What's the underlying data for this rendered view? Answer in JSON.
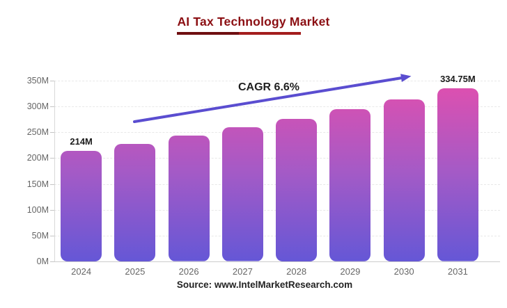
{
  "title": {
    "text": "AI Tax Technology Market",
    "color": "#8B0E12",
    "underline_colors": [
      "#6E0E10",
      "#A31D1D"
    ]
  },
  "annotation": {
    "text": "CAGR 6.6%",
    "arrow_color": "#5A4DD0"
  },
  "source": "Source: www.IntelMarketResearch.com",
  "chart_data": {
    "type": "bar",
    "categories": [
      "2024",
      "2025",
      "2026",
      "2027",
      "2028",
      "2029",
      "2030",
      "2031"
    ],
    "values": [
      214,
      228.1,
      243.2,
      259.2,
      276.3,
      294.6,
      314.0,
      334.75
    ],
    "data_labels": [
      "214M",
      "",
      "",
      "",
      "",
      "",
      "",
      "334.75M"
    ],
    "title": "AI Tax Technology Market",
    "xlabel": "",
    "ylabel": "",
    "y_ticks": [
      "0M",
      "50M",
      "100M",
      "150M",
      "200M",
      "250M",
      "300M",
      "350M"
    ],
    "ylim": [
      0,
      350
    ],
    "grid": true,
    "legend": "none",
    "bar_gradient_bottom_to_top": [
      "#6557D6",
      "#A55AC6",
      "#E14FAE"
    ]
  }
}
